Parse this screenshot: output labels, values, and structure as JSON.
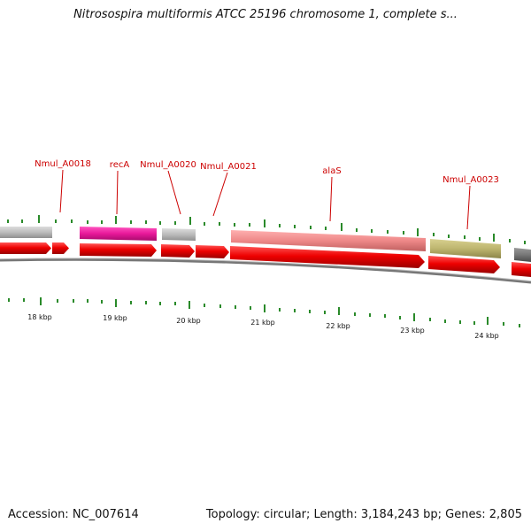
{
  "header": {
    "title": "Nitrosospira multiformis ATCC 25196 chromosome 1, complete s..."
  },
  "footer": {
    "accession": "Accession: NC_007614",
    "summary": "Topology: circular; Length: 3,184,243 bp; Genes: 2,805"
  },
  "map": {
    "scale_labels": [
      "18 kbp",
      "19 kbp",
      "20 kbp",
      "21 kbp",
      "22 kbp",
      "23 kbp",
      "24 kbp"
    ],
    "gene_labels": [
      "Nmul_A0018",
      "recA",
      "Nmul_A0020",
      "Nmul_A0021",
      "alaS",
      "Nmul_A0023"
    ],
    "colors": {
      "cds_arrow": "#ee0000",
      "tick": "#2a8a2a",
      "label": "#cc0000",
      "backbone": "#777777",
      "recA": "#e8189a",
      "alaS": "#ee8888",
      "Nmul_A0023": "#bdb56e",
      "other_gene": "#bbbbbb"
    }
  }
}
